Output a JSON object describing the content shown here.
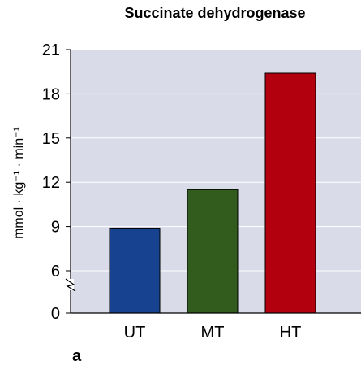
{
  "chart_data": {
    "type": "bar",
    "title": "Succinate dehydrogenase",
    "xlabel": "",
    "ylabel": "mmol · kg⁻¹ · min⁻¹",
    "categories": [
      "UT",
      "MT",
      "HT"
    ],
    "values": [
      8.9,
      11.5,
      19.4
    ],
    "bar_colors": [
      "#17428f",
      "#325c1e",
      "#b3000f"
    ],
    "ylim": [
      0,
      21
    ],
    "y_ticks": [
      0,
      6,
      9,
      12,
      15,
      18,
      21
    ],
    "y_tick_labels": [
      "0",
      "6",
      "9",
      "12",
      "15",
      "18",
      "21"
    ],
    "axis_break": true,
    "grid": true,
    "plot_background": "#d9dbe8",
    "panel_label": "a"
  }
}
